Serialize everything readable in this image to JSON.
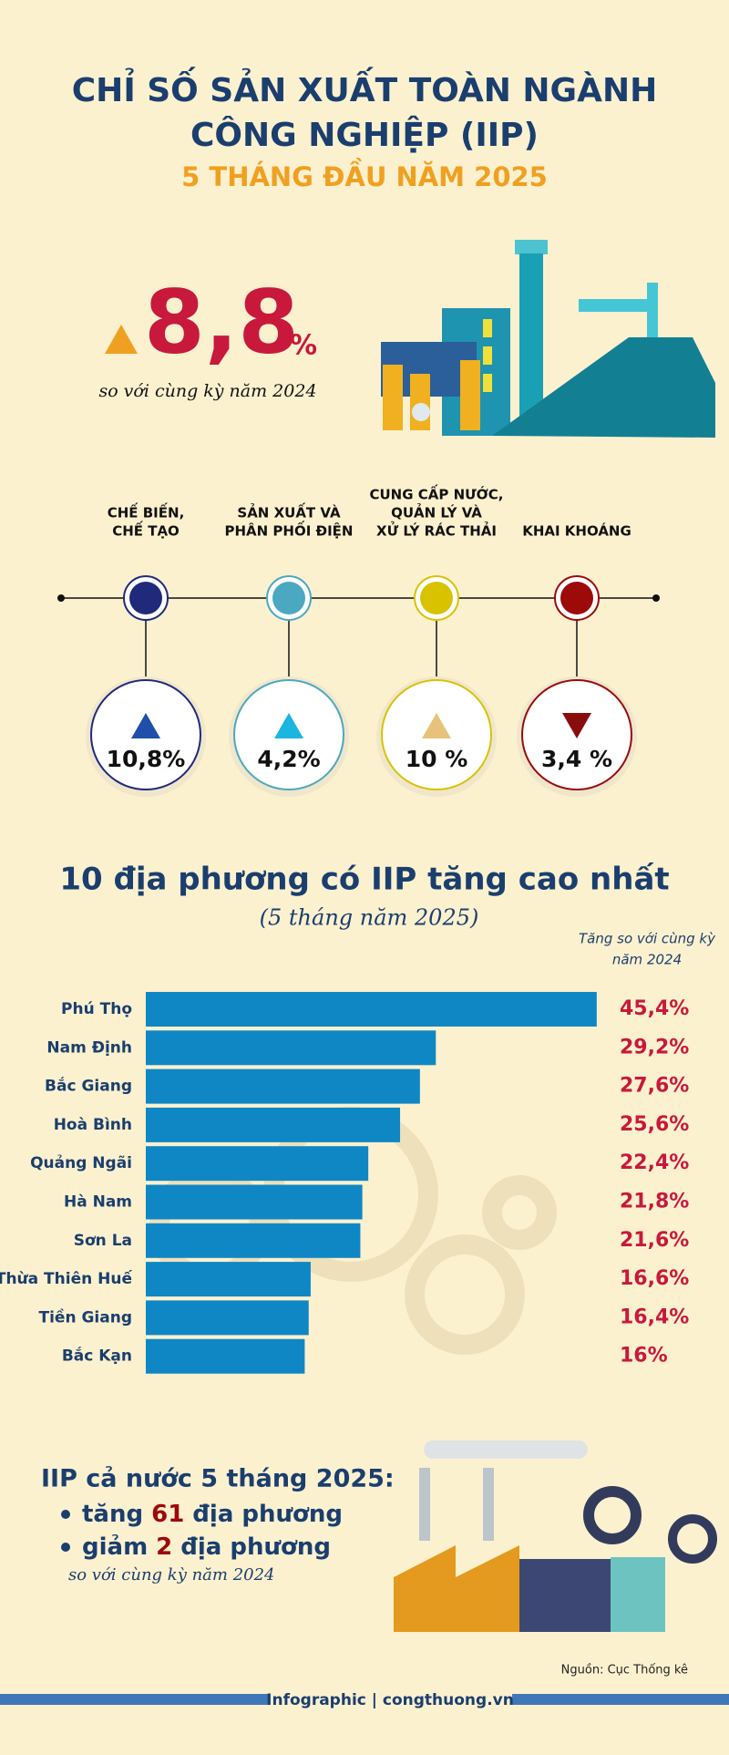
{
  "header": {
    "title_lines": [
      "CHỈ SỐ SẢN XUẤT TOÀN NGÀNH",
      "CÔNG NGHIỆP (IIP)"
    ],
    "subtitle": "5 THÁNG ĐẦU NĂM 2025"
  },
  "headline": {
    "value": 8.8,
    "value_label": "8,8",
    "unit": "%",
    "direction": "up",
    "note": "so với cùng kỳ năm 2024"
  },
  "sectors": [
    {
      "label_lines": [
        "CHẾ BIẾN,",
        "CHẾ TẠO"
      ],
      "value": 10.8,
      "value_label": "10,8%",
      "direction": "up",
      "color": "#1f2a7a",
      "arrow_color": "#1f4fa8"
    },
    {
      "label_lines": [
        "SẢN XUẤT VÀ",
        "PHÂN PHỐI ĐIỆN"
      ],
      "value": 4.2,
      "value_label": "4,2%",
      "direction": "up",
      "color": "#4aa8c0",
      "arrow_color": "#1ab6e0"
    },
    {
      "label_lines": [
        "CUNG CẤP NƯỚC,",
        "QUẢN LÝ VÀ",
        "XỬ LÝ RÁC THẢI"
      ],
      "value": 10,
      "value_label": "10 %",
      "direction": "up",
      "color": "#d9c200",
      "arrow_color": "#e8c27a"
    },
    {
      "label_lines": [
        "KHAI KHOÁNG"
      ],
      "value": 3.4,
      "value_label": "3,4 %",
      "direction": "down",
      "color": "#9c0a0a",
      "arrow_color": "#8a0d0d"
    }
  ],
  "chart_data": {
    "type": "bar",
    "orientation": "horizontal",
    "title": "10 địa phương có IIP tăng cao nhất",
    "subtitle": "(5 tháng năm 2025)",
    "value_header_lines": [
      "Tăng so với cùng kỳ",
      "năm 2024"
    ],
    "categories": [
      "Phú Thọ",
      "Nam Định",
      "Bắc Giang",
      "Hoà Bình",
      "Quảng Ngãi",
      "Hà Nam",
      "Sơn La",
      "Thừa Thiên Huế",
      "Tiền Giang",
      "Bắc Kạn"
    ],
    "values": [
      45.4,
      29.2,
      27.6,
      25.6,
      22.4,
      21.8,
      21.6,
      16.6,
      16.4,
      16
    ],
    "value_labels": [
      "45,4%",
      "29,2%",
      "27,6%",
      "25,6%",
      "22,4%",
      "21,8%",
      "21,6%",
      "16,6%",
      "16,4%",
      "16%"
    ],
    "color": "#0f87c5"
  },
  "summary": {
    "heading": "IIP cả nước 5 tháng 2025:",
    "items": [
      {
        "prefix": "tăng",
        "number": 61,
        "suffix": "địa phương"
      },
      {
        "prefix": "giảm",
        "number": 2,
        "suffix": "địa phương"
      }
    ],
    "note": "so với cùng kỳ năm 2024"
  },
  "footer": {
    "source": "Nguồn: Cục Thống kê",
    "brand": "Infographic | congthuong.vn"
  }
}
